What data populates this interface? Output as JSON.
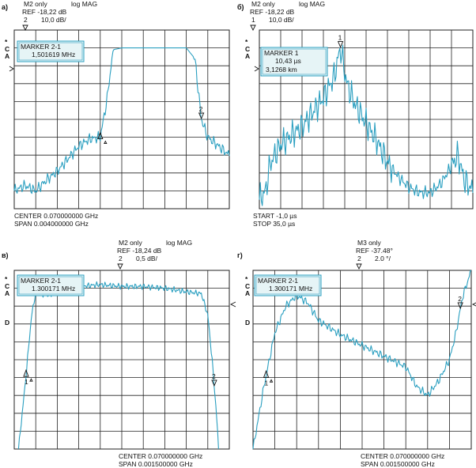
{
  "trace_color": "#2a9fc0",
  "chart_data": [
    {
      "panel_label": "a)",
      "type": "line",
      "header": {
        "line1a": "M2 only",
        "line1b": "log MAG",
        "ref_text": "REF  -18,22 dB",
        "ref_num": "2",
        "scale": "10,0 dB/"
      },
      "side_letters": [
        "*",
        "C",
        "A"
      ],
      "marker_box": {
        "title": "MARKER 2-1",
        "value": "1,501619 MHz"
      },
      "footer": {
        "line1": "CENTER   0.070000000 GHz",
        "line2": "SPAN      0.004000000 GHz"
      },
      "marker_labels": [
        "",
        "2"
      ],
      "ylim": [
        0,
        10
      ],
      "x": [
        0,
        1,
        2,
        3,
        4,
        4.5,
        5,
        5.5,
        6,
        7,
        8,
        9,
        10
      ],
      "points": [
        [
          0,
          1.0
        ],
        [
          0.5,
          1.3
        ],
        [
          1.0,
          1.0
        ],
        [
          1.5,
          1.6
        ],
        [
          2.0,
          2.1
        ],
        [
          2.5,
          2.8
        ],
        [
          3.0,
          3.5
        ],
        [
          3.5,
          3.9
        ],
        [
          4.0,
          4.0
        ],
        [
          4.3,
          6.0
        ],
        [
          4.6,
          8.9
        ],
        [
          5.0,
          9.0
        ],
        [
          6.0,
          9.0
        ],
        [
          7.0,
          9.0
        ],
        [
          8.0,
          9.0
        ],
        [
          8.4,
          8.4
        ],
        [
          8.7,
          5.0
        ],
        [
          9.0,
          4.0
        ],
        [
          9.5,
          3.5
        ],
        [
          10.0,
          3.0
        ]
      ]
    },
    {
      "panel_label": "б)",
      "type": "line",
      "header": {
        "line1a": "M2 only",
        "line1b": "log MAG",
        "ref_text": "REF  -18,22 dB",
        "ref_num": "1",
        "scale": "10,0 dB/"
      },
      "side_letters": [
        "*",
        "C",
        "A"
      ],
      "marker_box": {
        "title": "MARKER 1",
        "value": "10,43 µs",
        "value2": "3,1268 km"
      },
      "footer": {
        "line1": "START  -1,0 µs",
        "line2": "STOP    35,0 µs"
      },
      "marker_labels": [
        "1"
      ],
      "ylim": [
        0,
        10
      ],
      "points": [
        [
          0,
          0.5
        ],
        [
          0.3,
          1.0
        ],
        [
          0.5,
          2.5
        ],
        [
          1.0,
          3.6
        ],
        [
          2.0,
          4.6
        ],
        [
          3.0,
          6.2
        ],
        [
          3.5,
          7.4
        ],
        [
          3.8,
          9.0
        ],
        [
          4.1,
          7.0
        ],
        [
          4.5,
          5.8
        ],
        [
          5.0,
          4.8
        ],
        [
          5.5,
          3.8
        ],
        [
          6.0,
          2.6
        ],
        [
          6.5,
          1.8
        ],
        [
          7.0,
          1.2
        ],
        [
          7.5,
          0.9
        ],
        [
          8.0,
          0.9
        ],
        [
          8.5,
          1.4
        ],
        [
          9.0,
          2.4
        ],
        [
          9.3,
          3.0
        ],
        [
          9.6,
          1.6
        ],
        [
          10.0,
          1.0
        ]
      ]
    },
    {
      "panel_label": "в)",
      "type": "line",
      "header": {
        "line1a": "M2 only",
        "line1b": "log MAG",
        "ref_text": "REF  -18,24 dB",
        "ref_num": "2",
        "scale": "0,5 dB/"
      },
      "side_letters": [
        "*",
        "C",
        "A",
        "D"
      ],
      "marker_box": {
        "title": "MARKER 2-1",
        "value": "1.300171 MHz"
      },
      "footer": {
        "line1": "CENTER   0.070000000 GHz",
        "line2": "SPAN      0.001500000 GHz"
      },
      "marker_labels": [
        "1",
        "2"
      ],
      "ylim": [
        0,
        10
      ],
      "points": [
        [
          0.2,
          0.0
        ],
        [
          0.5,
          3.5
        ],
        [
          0.8,
          7.4
        ],
        [
          1.0,
          8.8
        ],
        [
          1.5,
          8.6
        ],
        [
          2.0,
          8.8
        ],
        [
          3.0,
          9.1
        ],
        [
          4.0,
          9.2
        ],
        [
          5.0,
          9.1
        ],
        [
          6.0,
          9.1
        ],
        [
          7.0,
          9.0
        ],
        [
          8.0,
          8.8
        ],
        [
          8.7,
          8.7
        ],
        [
          9.0,
          7.5
        ],
        [
          9.2,
          5.0
        ],
        [
          9.4,
          2.0
        ],
        [
          9.5,
          0.0
        ]
      ]
    },
    {
      "panel_label": "г)",
      "type": "line",
      "header": {
        "line1a": "M3 only",
        "line1b": "",
        "ref_text": "REF  -37.48°",
        "ref_num": "2",
        "scale": "2.0 °/"
      },
      "side_letters": [
        "*",
        "C",
        "A",
        "D"
      ],
      "marker_box": {
        "title": "MARKER 2-1",
        "value": "1.300171 MHz"
      },
      "footer": {
        "line1": "CENTER   0.070000000 GHz",
        "line2": "SPAN      0.001500000 GHz"
      },
      "marker_labels": [
        "1",
        "2"
      ],
      "ylim": [
        0,
        10
      ],
      "points": [
        [
          0.0,
          0.0
        ],
        [
          0.5,
          3.5
        ],
        [
          1.0,
          6.5
        ],
        [
          1.5,
          8.0
        ],
        [
          2.0,
          8.6
        ],
        [
          2.5,
          8.2
        ],
        [
          3.0,
          7.2
        ],
        [
          4.0,
          6.4
        ],
        [
          5.0,
          5.8
        ],
        [
          6.0,
          5.2
        ],
        [
          7.0,
          4.6
        ],
        [
          7.5,
          3.5
        ],
        [
          8.0,
          3.0
        ],
        [
          8.5,
          3.8
        ],
        [
          9.0,
          5.0
        ],
        [
          9.3,
          6.5
        ],
        [
          9.6,
          8.5
        ],
        [
          10.0,
          10.0
        ]
      ]
    }
  ]
}
